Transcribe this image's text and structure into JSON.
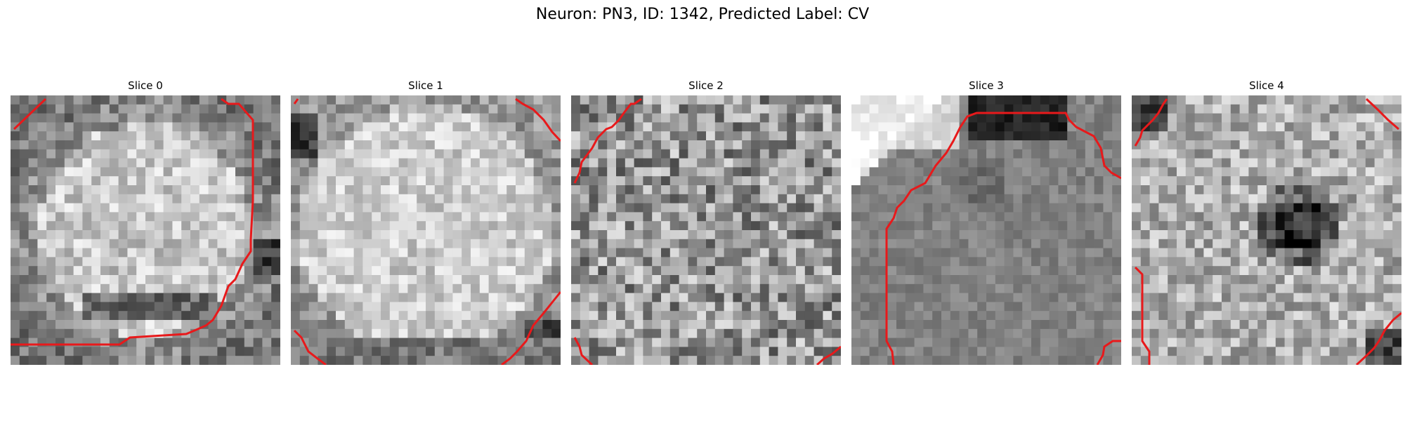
{
  "figure": {
    "title": "Neuron: PN3, ID: 1342, Predicted Label: CV"
  },
  "colors": {
    "contour": "#e8191b",
    "background": "#ffffff"
  },
  "slices": [
    {
      "title": "Slice 0",
      "pattern": "bright-cell-body-center",
      "contour_color": "red"
    },
    {
      "title": "Slice 1",
      "pattern": "bright-cell-body-large",
      "contour_color": "red"
    },
    {
      "title": "Slice 2",
      "pattern": "noisy-mid-gray",
      "contour_color": "red"
    },
    {
      "title": "Slice 3",
      "pattern": "dark-cell-body-with-bright-corner",
      "contour_color": "red"
    },
    {
      "title": "Slice 4",
      "pattern": "noisy-light-with-dark-center",
      "contour_color": "red"
    }
  ]
}
